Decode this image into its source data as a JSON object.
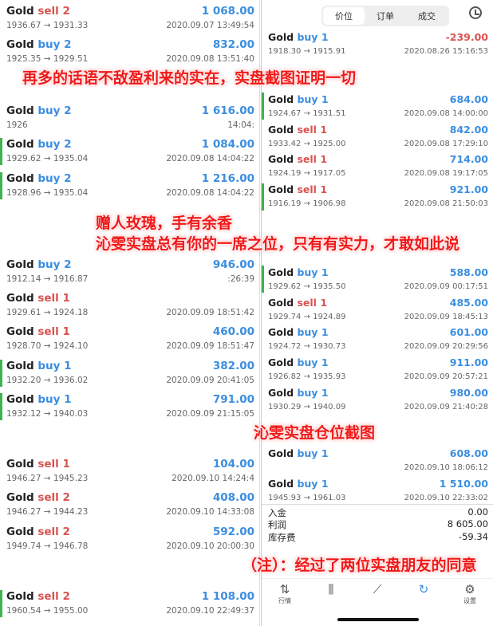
{
  "left_trades": [
    {
      "symbol": "Gold",
      "side": "sell",
      "volume": "2",
      "prices": "1936.67 → 1931.33",
      "time": "2020.09.07 13:49:54",
      "profit": "1 068.00",
      "bar": false
    },
    {
      "symbol": "Gold",
      "side": "buy",
      "volume": "2",
      "prices": "1925.35 → 1929.51",
      "time": "2020.09.08 13:51:40",
      "profit": "832.00",
      "bar": false
    },
    {
      "symbol": "Gold",
      "side": "buy",
      "volume": "2",
      "prices": "1926",
      "time": "14:04:",
      "profit": "1 616.00",
      "bar": false
    },
    {
      "symbol": "Gold",
      "side": "buy",
      "volume": "2",
      "prices": "1929.62 → 1935.04",
      "time": "2020.09.08 14:04:22",
      "profit": "1 084.00",
      "bar": true
    },
    {
      "symbol": "Gold",
      "side": "buy",
      "volume": "2",
      "prices": "1928.96 → 1935.04",
      "time": "2020.09.08 14:04:22",
      "profit": "1 216.00",
      "bar": true
    },
    {
      "symbol": "Gold",
      "side": "buy",
      "volume": "2",
      "prices": "1912.14 → 1916.87",
      "time": ":26:39",
      "profit": "946.00",
      "bar": false
    },
    {
      "symbol": "Gold",
      "side": "sell",
      "volume": "1",
      "prices": "1929.61 → 1924.18",
      "time": "2020.09.09 18:51:42",
      "profit": "",
      "bar": false
    },
    {
      "symbol": "Gold",
      "side": "sell",
      "volume": "1",
      "prices": "1928.70 → 1924.10",
      "time": "2020.09.09 18:51:47",
      "profit": "460.00",
      "bar": false
    },
    {
      "symbol": "Gold",
      "side": "buy",
      "volume": "1",
      "prices": "1932.20 → 1936.02",
      "time": "2020.09.09 20:41:05",
      "profit": "382.00",
      "bar": true
    },
    {
      "symbol": "Gold",
      "side": "buy",
      "volume": "1",
      "prices": "1932.12 → 1940.03",
      "time": "2020.09.09 21:15:05",
      "profit": "791.00",
      "bar": true
    },
    {
      "symbol": "Gold",
      "side": "sell",
      "volume": "1",
      "prices": "1946.27 → 1945.23",
      "time": "2020.09.10 14:24:4",
      "profit": "104.00",
      "bar": false
    },
    {
      "symbol": "Gold",
      "side": "sell",
      "volume": "2",
      "prices": "1946.27 → 1944.23",
      "time": "2020.09.10 14:33:08",
      "profit": "408.00",
      "bar": false
    },
    {
      "symbol": "Gold",
      "side": "sell",
      "volume": "2",
      "prices": "1949.74 → 1946.78",
      "time": "2020.09.10 20:00:30",
      "profit": "592.00",
      "bar": false
    },
    {
      "symbol": "Gold",
      "side": "sell",
      "volume": "2",
      "prices": "1960.54 → 1955.00",
      "time": "2020.09.10 22:49:37",
      "profit": "1 108.00",
      "bar": true
    }
  ],
  "right_header": {
    "tabs": [
      "价位",
      "订单",
      "成交"
    ],
    "active_tab": 0,
    "history_icon": "clock-icon"
  },
  "right_trades": [
    {
      "symbol": "Gold",
      "side": "buy",
      "volume": "1",
      "prices": "1918.30 → 1915.91",
      "time": "2020.08.26 15:16:53",
      "profit": "-239.00",
      "bar": false
    },
    {
      "symbol": "Gold",
      "side": "buy",
      "volume": "1",
      "prices": "1924.67 → 1931.51",
      "time": "2020.09.08 14:00:00",
      "profit": "684.00",
      "bar": true
    },
    {
      "symbol": "Gold",
      "side": "sell",
      "volume": "1",
      "prices": "1933.42 → 1925.00",
      "time": "2020.09.08 17:29:10",
      "profit": "842.00",
      "bar": false
    },
    {
      "symbol": "Gold",
      "side": "sell",
      "volume": "1",
      "prices": "1924.19 → 1917.05",
      "time": "2020.09.08 19:17:05",
      "profit": "714.00",
      "bar": false
    },
    {
      "symbol": "Gold",
      "side": "sell",
      "volume": "1",
      "prices": "1916.19 → 1906.98",
      "time": "2020.09.08 21:50:03",
      "profit": "921.00",
      "bar": true
    },
    {
      "symbol": "Gold",
      "side": "buy",
      "volume": "1",
      "prices": "1929.62 → 1935.50",
      "time": "2020.09.09 00:17:51",
      "profit": "588.00",
      "bar": true
    },
    {
      "symbol": "Gold",
      "side": "sell",
      "volume": "1",
      "prices": "1929.74 → 1924.89",
      "time": "2020.09.09 18:45:13",
      "profit": "485.00",
      "bar": false
    },
    {
      "symbol": "Gold",
      "side": "buy",
      "volume": "1",
      "prices": "1924.72 → 1930.73",
      "time": "2020.09.09 20:29:56",
      "profit": "601.00",
      "bar": false
    },
    {
      "symbol": "Gold",
      "side": "buy",
      "volume": "1",
      "prices": "1926.82 → 1935.93",
      "time": "2020.09.09 20:57:21",
      "profit": "911.00",
      "bar": false
    },
    {
      "symbol": "Gold",
      "side": "buy",
      "volume": "1",
      "prices": "1930.29 → 1940.09",
      "time": "2020.09.09 21:40:28",
      "profit": "980.00",
      "bar": false
    },
    {
      "symbol": "Gold",
      "side": "buy",
      "volume": "1",
      "prices": "",
      "time": "2020.09.10 18:06:12",
      "profit": "608.00",
      "bar": false
    },
    {
      "symbol": "Gold",
      "side": "buy",
      "volume": "1",
      "prices": "1945.93 → 1961.03",
      "time": "2020.09.10 22:33:02",
      "profit": "1 510.00",
      "bar": false
    }
  ],
  "summary": [
    {
      "label": "入金",
      "value": "0.00"
    },
    {
      "label": "利润",
      "value": "8 605.00"
    },
    {
      "label": "库存费",
      "value": "-59.34"
    }
  ],
  "bottom_nav": [
    {
      "icon": "arrows-icon",
      "glyph": "⇅",
      "label": "行情"
    },
    {
      "icon": "candlestick-icon",
      "glyph": "⫼",
      "label": ""
    },
    {
      "icon": "chart-icon",
      "glyph": "⟋",
      "label": ""
    },
    {
      "icon": "history-icon",
      "glyph": "↻",
      "label": "",
      "active": true
    },
    {
      "icon": "gear-icon",
      "glyph": "⚙",
      "label": "设置"
    }
  ],
  "overlays": {
    "line1": "再多的话语不敌盈利来的实在，实盘截图证明一切",
    "line2": "赠人玫瑰，手有余香",
    "line3": "沁雯实盘总有你的一席之位，只有有实力，才敢如此说",
    "line4": "沁雯实盘仓位截图",
    "line5": "（注）：经过了两位实盘朋友的同意"
  },
  "colors": {
    "buy": "#3b8ee0",
    "sell": "#d9534f",
    "overlay": "#f01818",
    "bar": "#3fb34f"
  }
}
